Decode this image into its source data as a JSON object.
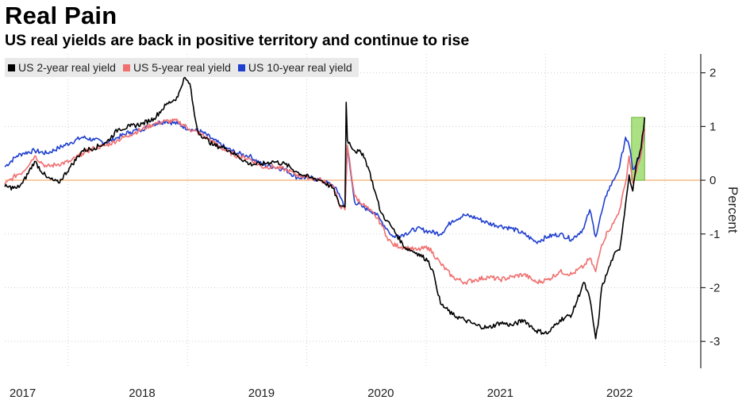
{
  "header": {
    "title": "Real Pain",
    "subtitle": "US real yields are back in positive territory and continue to rise"
  },
  "colors": {
    "two_year": "#000000",
    "five_year": "#f07070",
    "ten_year": "#1f3fcf",
    "zero_line": "#f3a25a",
    "highlight": "#8fd65a"
  },
  "chart_data": {
    "type": "line",
    "title": "Real Pain",
    "subtitle": "US real yields are back in positive territory and continue to rise",
    "xlabel": "",
    "ylabel": "Percent",
    "xlim": [
      2016.85,
      2022.68
    ],
    "ylim": [
      -3.5,
      2.35
    ],
    "x_ticks": [
      2017,
      2018,
      2019,
      2020,
      2021,
      2022
    ],
    "x_tick_labels": [
      "2017",
      "2018",
      "2019",
      "2020",
      "2021",
      "2022"
    ],
    "y_ticks": [
      2,
      1,
      0,
      -1,
      -2,
      -3
    ],
    "y_tick_labels": [
      "2",
      "1",
      "0",
      "-1",
      "-2",
      "-3"
    ],
    "grid": "vertical-dotted",
    "reference_line": 0,
    "highlight": {
      "x0": 2022.1,
      "x1": 2022.21,
      "y0": 0,
      "y1": 1.17
    },
    "series": [
      {
        "name": "US 2-year real yield",
        "color": "#000000",
        "x": [
          2016.85,
          2016.95,
          2017.0,
          2017.1,
          2017.2,
          2017.3,
          2017.4,
          2017.5,
          2017.6,
          2017.7,
          2017.8,
          2017.9,
          2018.0,
          2018.1,
          2018.2,
          2018.3,
          2018.35,
          2018.4,
          2018.44,
          2018.47,
          2018.52,
          2018.6,
          2018.7,
          2018.8,
          2018.9,
          2019.0,
          2019.1,
          2019.2,
          2019.3,
          2019.4,
          2019.5,
          2019.6,
          2019.65,
          2019.7,
          2019.71,
          2019.72,
          2019.78,
          2019.85,
          2019.9,
          2019.95,
          2020.0,
          2020.05,
          2020.1,
          2020.2,
          2020.3,
          2020.4,
          2020.45,
          2020.5,
          2020.6,
          2020.7,
          2020.8,
          2020.9,
          2021.0,
          2021.1,
          2021.2,
          2021.3,
          2021.4,
          2021.5,
          2021.6,
          2021.7,
          2021.75,
          2021.8,
          2021.82,
          2021.85,
          2021.9,
          2021.95,
          2022.0,
          2022.05,
          2022.08,
          2022.11,
          2022.14,
          2022.18,
          2022.21
        ],
        "y": [
          -0.12,
          -0.15,
          -0.05,
          0.35,
          0.05,
          -0.05,
          0.25,
          0.55,
          0.6,
          0.7,
          0.95,
          1.0,
          1.05,
          1.15,
          1.4,
          1.55,
          1.9,
          1.8,
          1.2,
          0.9,
          0.8,
          0.65,
          0.6,
          0.45,
          0.3,
          0.3,
          0.35,
          0.3,
          0.15,
          0.05,
          0.0,
          -0.15,
          -0.45,
          -0.5,
          1.45,
          0.75,
          0.55,
          0.5,
          0.2,
          -0.2,
          -0.6,
          -0.75,
          -0.9,
          -1.25,
          -1.35,
          -1.5,
          -1.8,
          -2.3,
          -2.5,
          -2.6,
          -2.7,
          -2.75,
          -2.65,
          -2.7,
          -2.6,
          -2.8,
          -2.85,
          -2.6,
          -2.5,
          -1.9,
          -2.2,
          -2.95,
          -2.7,
          -2.0,
          -1.7,
          -1.4,
          -1.3,
          -0.45,
          0.1,
          -0.2,
          0.3,
          0.6,
          1.17
        ]
      },
      {
        "name": "US 5-year real yield",
        "color": "#f07070",
        "x": [
          2016.85,
          2016.95,
          2017.0,
          2017.1,
          2017.2,
          2017.3,
          2017.4,
          2017.5,
          2017.6,
          2017.7,
          2017.8,
          2017.9,
          2018.0,
          2018.1,
          2018.2,
          2018.3,
          2018.4,
          2018.5,
          2018.6,
          2018.7,
          2018.8,
          2018.9,
          2019.0,
          2019.1,
          2019.2,
          2019.3,
          2019.4,
          2019.5,
          2019.6,
          2019.65,
          2019.7,
          2019.72,
          2019.78,
          2019.85,
          2019.9,
          2019.95,
          2020.0,
          2020.05,
          2020.1,
          2020.2,
          2020.3,
          2020.4,
          2020.5,
          2020.6,
          2020.7,
          2020.8,
          2020.9,
          2021.0,
          2021.1,
          2021.2,
          2021.3,
          2021.4,
          2021.5,
          2021.6,
          2021.7,
          2021.75,
          2021.8,
          2021.85,
          2021.9,
          2021.95,
          2022.0,
          2022.05,
          2022.08,
          2022.11,
          2022.14,
          2022.18,
          2022.21
        ],
        "y": [
          -0.08,
          0.1,
          0.15,
          0.45,
          0.25,
          0.3,
          0.35,
          0.5,
          0.6,
          0.65,
          0.75,
          0.85,
          0.95,
          1.05,
          1.1,
          1.1,
          0.95,
          0.85,
          0.7,
          0.55,
          0.45,
          0.4,
          0.25,
          0.25,
          0.2,
          0.1,
          0.05,
          0.0,
          -0.1,
          -0.45,
          -0.55,
          0.65,
          -0.3,
          -0.45,
          -0.55,
          -0.65,
          -0.8,
          -1.05,
          -1.2,
          -1.25,
          -1.3,
          -1.25,
          -1.55,
          -1.8,
          -1.9,
          -1.85,
          -1.8,
          -1.85,
          -1.8,
          -1.75,
          -1.9,
          -1.85,
          -1.7,
          -1.75,
          -1.6,
          -1.45,
          -1.7,
          -1.2,
          -0.95,
          -0.8,
          -0.55,
          -0.05,
          0.45,
          -0.05,
          0.15,
          0.5,
          0.95
        ]
      },
      {
        "name": "US 10-year real yield",
        "color": "#1f3fcf",
        "x": [
          2016.85,
          2016.95,
          2017.0,
          2017.1,
          2017.2,
          2017.3,
          2017.4,
          2017.5,
          2017.6,
          2017.7,
          2017.8,
          2017.9,
          2018.0,
          2018.1,
          2018.2,
          2018.3,
          2018.4,
          2018.5,
          2018.6,
          2018.7,
          2018.8,
          2018.9,
          2019.0,
          2019.1,
          2019.2,
          2019.3,
          2019.4,
          2019.5,
          2019.6,
          2019.65,
          2019.7,
          2019.72,
          2019.78,
          2019.85,
          2019.9,
          2019.95,
          2020.0,
          2020.05,
          2020.1,
          2020.2,
          2020.3,
          2020.4,
          2020.5,
          2020.6,
          2020.7,
          2020.8,
          2020.9,
          2021.0,
          2021.1,
          2021.2,
          2021.3,
          2021.4,
          2021.5,
          2021.6,
          2021.7,
          2021.75,
          2021.8,
          2021.85,
          2021.9,
          2021.95,
          2022.0,
          2022.05,
          2022.08,
          2022.11,
          2022.14,
          2022.18,
          2022.21
        ],
        "y": [
          0.25,
          0.45,
          0.5,
          0.55,
          0.5,
          0.6,
          0.7,
          0.8,
          0.75,
          0.7,
          0.8,
          0.9,
          0.95,
          1.05,
          1.1,
          1.05,
          0.95,
          0.9,
          0.75,
          0.6,
          0.5,
          0.45,
          0.3,
          0.25,
          0.2,
          0.05,
          0.05,
          0.0,
          -0.1,
          -0.25,
          -0.5,
          0.6,
          -0.4,
          -0.5,
          -0.55,
          -0.6,
          -0.75,
          -0.9,
          -1.05,
          -1.0,
          -0.9,
          -0.95,
          -1.0,
          -0.75,
          -0.65,
          -0.7,
          -0.8,
          -0.85,
          -0.9,
          -1.0,
          -1.15,
          -1.05,
          -1.0,
          -1.1,
          -0.9,
          -0.55,
          -1.05,
          -0.6,
          -0.2,
          0.0,
          0.25,
          0.8,
          0.65,
          0.2,
          0.3,
          0.5,
          0.95
        ]
      }
    ]
  }
}
